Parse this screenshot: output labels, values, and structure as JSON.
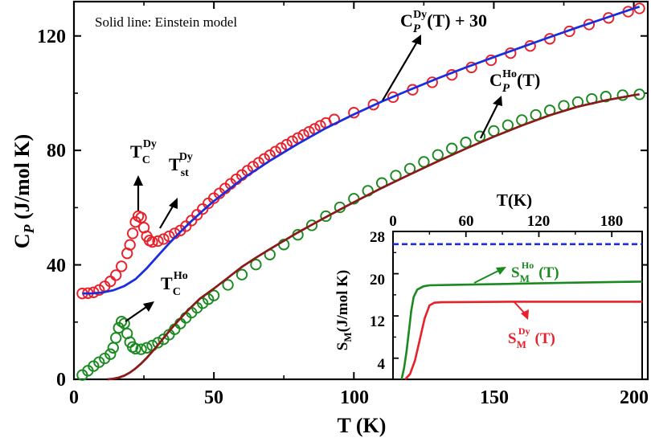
{
  "chart_data": [
    {
      "id": "main",
      "type": "scatter",
      "xlabel": "T (K)",
      "ylabel": "C_P (J/mol K)",
      "xlim": [
        0,
        205
      ],
      "ylim": [
        0,
        132
      ],
      "xticks": [
        "0",
        "50",
        "100",
        "150",
        "200"
      ],
      "yticks": [
        "0",
        "40",
        "80",
        "120"
      ],
      "annotation": "Solid line: Einstein model",
      "series": [
        {
          "name": "C_P^Dy(T) + 30",
          "kind": "markers",
          "color": "#e8202a",
          "points": [
            [
              3,
              30
            ],
            [
              5,
              30.1
            ],
            [
              7,
              30.4
            ],
            [
              9,
              31.2
            ],
            [
              11,
              32.5
            ],
            [
              13,
              34.2
            ],
            [
              15,
              36.4
            ],
            [
              17,
              39.5
            ],
            [
              19,
              44
            ],
            [
              20,
              47
            ],
            [
              21,
              51
            ],
            [
              22,
              55
            ],
            [
              23,
              57
            ],
            [
              24,
              56.5
            ],
            [
              25,
              53
            ],
            [
              26,
              50
            ],
            [
              27,
              48.5
            ],
            [
              28,
              48
            ],
            [
              30,
              48.3
            ],
            [
              32,
              49
            ],
            [
              34,
              50
            ],
            [
              36,
              51
            ],
            [
              38,
              52
            ],
            [
              40,
              53.5
            ],
            [
              42,
              55.5
            ],
            [
              44,
              57.5
            ],
            [
              46,
              59.5
            ],
            [
              48,
              61.5
            ],
            [
              50,
              63.3
            ],
            [
              52,
              65
            ],
            [
              54,
              66.7
            ],
            [
              56,
              68.3
            ],
            [
              58,
              69.9
            ],
            [
              60,
              71.4
            ],
            [
              62,
              72.9
            ],
            [
              64,
              74.3
            ],
            [
              66,
              75.7
            ],
            [
              68,
              77
            ],
            [
              70,
              78.3
            ],
            [
              72,
              79.6
            ],
            [
              74,
              80.8
            ],
            [
              76,
              82
            ],
            [
              78,
              83.2
            ],
            [
              80,
              84.3
            ],
            [
              82,
              85.4
            ],
            [
              84,
              86.5
            ],
            [
              86,
              87.5
            ],
            [
              88,
              88.6
            ],
            [
              90,
              89.6
            ],
            [
              93,
              90.8
            ],
            [
              100,
              93.2
            ],
            [
              107,
              96
            ],
            [
              114,
              98.6
            ],
            [
              121,
              101.2
            ],
            [
              128,
              103.8
            ],
            [
              135,
              106.4
            ],
            [
              142,
              109
            ],
            [
              149,
              111.5
            ],
            [
              156,
              114
            ],
            [
              163,
              116.5
            ],
            [
              170,
              119
            ],
            [
              177,
              121.6
            ],
            [
              184,
              124
            ],
            [
              191,
              126.3
            ],
            [
              198,
              128.5
            ],
            [
              202,
              129.6
            ]
          ]
        },
        {
          "name": "C_P^Dy Einstein fit",
          "kind": "line",
          "color": "#1a2ee0",
          "points": [
            [
              3,
              30
            ],
            [
              6,
              30
            ],
            [
              10,
              30.3
            ],
            [
              14,
              31.1
            ],
            [
              18,
              32.6
            ],
            [
              22,
              35
            ],
            [
              26,
              38.8
            ],
            [
              30,
              43.2
            ],
            [
              34,
              47.5
            ],
            [
              38,
              51.5
            ],
            [
              42,
              55.3
            ],
            [
              46,
              58.9
            ],
            [
              50,
              62.3
            ],
            [
              60,
              69.9
            ],
            [
              70,
              76.4
            ],
            [
              80,
              82.3
            ],
            [
              90,
              87.8
            ],
            [
              100,
              92.6
            ],
            [
              110,
              97.1
            ],
            [
              120,
              101.2
            ],
            [
              130,
              105.2
            ],
            [
              140,
              109
            ],
            [
              150,
              112.6
            ],
            [
              160,
              116.1
            ],
            [
              170,
              119.6
            ],
            [
              180,
              123
            ],
            [
              190,
              126.3
            ],
            [
              200,
              129.6
            ],
            [
              202,
              130.2
            ]
          ]
        },
        {
          "name": "C_P^Ho(T)",
          "kind": "markers",
          "color": "#1a8a20",
          "points": [
            [
              3,
              1.5
            ],
            [
              5,
              3
            ],
            [
              7,
              4.6
            ],
            [
              9,
              6
            ],
            [
              11,
              7.3
            ],
            [
              13,
              8.8
            ],
            [
              14,
              11
            ],
            [
              15,
              14.5
            ],
            [
              16,
              18
            ],
            [
              17,
              20.2
            ],
            [
              18,
              19.5
            ],
            [
              19,
              16
            ],
            [
              20,
              13
            ],
            [
              21,
              11.3
            ],
            [
              22,
              10.7
            ],
            [
              24,
              10.5
            ],
            [
              26,
              11
            ],
            [
              28,
              11.8
            ],
            [
              30,
              12.8
            ],
            [
              32,
              14
            ],
            [
              34,
              15.6
            ],
            [
              36,
              17.5
            ],
            [
              38,
              19.5
            ],
            [
              40,
              21.5
            ],
            [
              42,
              23.3
            ],
            [
              44,
              25
            ],
            [
              46,
              26.6
            ],
            [
              48,
              28
            ],
            [
              50,
              29.3
            ],
            [
              55,
              33
            ],
            [
              60,
              36.6
            ],
            [
              65,
              40.1
            ],
            [
              70,
              43.6
            ],
            [
              75,
              47.1
            ],
            [
              80,
              50.5
            ],
            [
              85,
              53.8
            ],
            [
              90,
              57
            ],
            [
              95,
              60.1
            ],
            [
              100,
              63.1
            ],
            [
              105,
              65.9
            ],
            [
              110,
              68.6
            ],
            [
              115,
              71.2
            ],
            [
              120,
              73.6
            ],
            [
              125,
              76
            ],
            [
              130,
              78.4
            ],
            [
              135,
              80.7
            ],
            [
              140,
              82.8
            ],
            [
              145,
              84.9
            ],
            [
              150,
              86.8
            ],
            [
              155,
              88.8
            ],
            [
              160,
              90.6
            ],
            [
              165,
              92.4
            ],
            [
              170,
              94
            ],
            [
              175,
              95.6
            ],
            [
              180,
              96.9
            ],
            [
              185,
              98
            ],
            [
              190,
              98.8
            ],
            [
              196,
              99.3
            ],
            [
              202,
              99.6
            ]
          ]
        },
        {
          "name": "C_P^Ho Einstein fit",
          "kind": "line",
          "color": "#8b1a1a",
          "points": [
            [
              12,
              0
            ],
            [
              14,
              0.2
            ],
            [
              16,
              0.6
            ],
            [
              18,
              1.3
            ],
            [
              20,
              2.4
            ],
            [
              22,
              3.8
            ],
            [
              24,
              5.5
            ],
            [
              26,
              7.5
            ],
            [
              28,
              9.7
            ],
            [
              30,
              12
            ],
            [
              32,
              14.4
            ],
            [
              34,
              16.8
            ],
            [
              36,
              19.1
            ],
            [
              38,
              21.3
            ],
            [
              40,
              23.4
            ],
            [
              45,
              28.2
            ],
            [
              50,
              31.7
            ],
            [
              55,
              35.5
            ],
            [
              60,
              39.3
            ],
            [
              65,
              42.5
            ],
            [
              70,
              45.5
            ],
            [
              80,
              51.3
            ],
            [
              90,
              56.7
            ],
            [
              100,
              61.9
            ],
            [
              110,
              66.9
            ],
            [
              120,
              71.6
            ],
            [
              130,
              76.2
            ],
            [
              140,
              80.6
            ],
            [
              150,
              84.8
            ],
            [
              160,
              88.7
            ],
            [
              170,
              92.3
            ],
            [
              180,
              95.3
            ],
            [
              190,
              97.5
            ],
            [
              200,
              99.3
            ],
            [
              202,
              99.6
            ]
          ]
        }
      ],
      "labels": {
        "dy_curve": "C_P^Dy(T) + 30",
        "ho_curve": "C_P^Ho(T)",
        "tc_dy": "T_C^Dy",
        "tst_dy": "T_st^Dy",
        "tc_ho": "T_C^Ho"
      }
    },
    {
      "id": "inset",
      "type": "line",
      "xlabel": "T(K)",
      "ylabel": "S_M(J/mol K)",
      "xlim": [
        0,
        205
      ],
      "ylim": [
        0,
        28
      ],
      "xticks": [
        "0",
        "60",
        "120",
        "180"
      ],
      "yticks": [
        "4",
        "12",
        "20",
        "28"
      ],
      "series": [
        {
          "name": "reference",
          "kind": "dashed",
          "color": "#1a2ee0",
          "points": [
            [
              0,
              25.6
            ],
            [
              205,
              25.6
            ]
          ]
        },
        {
          "name": "S_M^Ho (T)",
          "kind": "line",
          "color": "#1a8a20",
          "points": [
            [
              7,
              0
            ],
            [
              9,
              2
            ],
            [
              11,
              5
            ],
            [
              13,
              9
            ],
            [
              15,
              13
            ],
            [
              17,
              15.6
            ],
            [
              20,
              17
            ],
            [
              25,
              17.6
            ],
            [
              30,
              17.8
            ],
            [
              50,
              17.9
            ],
            [
              100,
              18.1
            ],
            [
              150,
              18.3
            ],
            [
              205,
              18.5
            ]
          ]
        },
        {
          "name": "S_M^Dy (T)",
          "kind": "line",
          "color": "#e8202a",
          "points": [
            [
              10,
              0
            ],
            [
              14,
              1
            ],
            [
              18,
              3.5
            ],
            [
              22,
              7.5
            ],
            [
              26,
              11.5
            ],
            [
              30,
              14
            ],
            [
              34,
              14.5
            ],
            [
              40,
              14.6
            ],
            [
              100,
              14.7
            ],
            [
              205,
              14.7
            ]
          ]
        }
      ],
      "labels": {
        "ho_curve": "S_M^Ho (T)",
        "dy_curve": "S_M^Dy (T)"
      }
    }
  ]
}
